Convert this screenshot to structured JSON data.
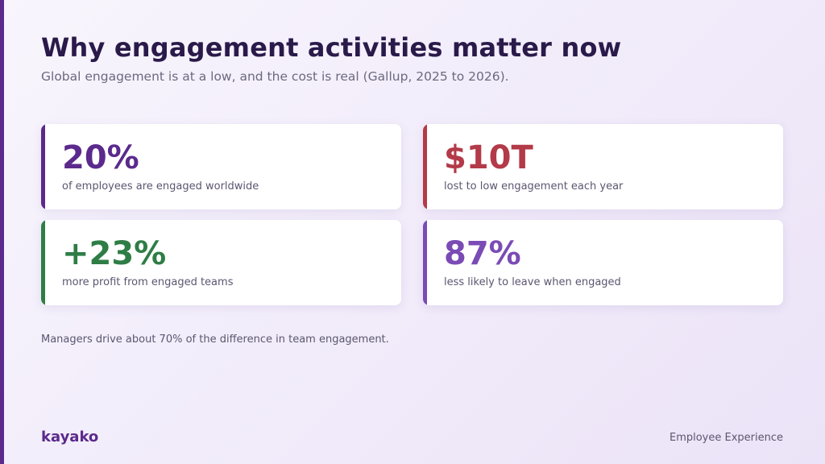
{
  "slide": {
    "title": "Why engagement activities matter now",
    "subtitle": "Global engagement is at a low, and the cost is real (Gallup, 2025 to 2026)."
  },
  "stats": [
    {
      "value": "20%",
      "label": "of employees are engaged worldwide",
      "color": "#5b2a8c"
    },
    {
      "value": "$10T",
      "label": "lost to low engagement each year",
      "color": "#b33a48"
    },
    {
      "value": "+23%",
      "label": "more profit from engaged teams",
      "color": "#2e7d46"
    },
    {
      "value": "87%",
      "label": "less likely to leave when engaged",
      "color": "#7a4bb5"
    }
  ],
  "note": "Managers drive about 70% of the difference in team engagement.",
  "footer": {
    "logo": "kayako",
    "tag": "Employee Experience"
  },
  "colors": {
    "brand": "#5b2a8c",
    "title": "#2a1a4a",
    "muted": "#6e6880"
  }
}
